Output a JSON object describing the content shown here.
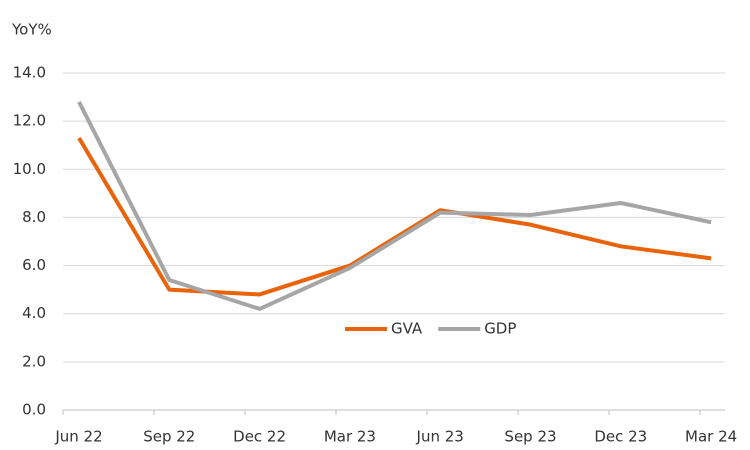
{
  "chart_data": {
    "type": "line",
    "y_label": "YoY%",
    "categories": [
      "Jun 22",
      "Sep 22",
      "Dec 22",
      "Mar 23",
      "Jun 23",
      "Sep 23",
      "Dec 23",
      "Mar 24"
    ],
    "series": [
      {
        "name": "GVA",
        "color": "#e8630a",
        "values": [
          11.3,
          5.0,
          4.8,
          6.0,
          8.3,
          7.7,
          6.8,
          6.3
        ]
      },
      {
        "name": "GDP",
        "color": "#a6a6a6",
        "values": [
          12.8,
          5.4,
          4.2,
          5.9,
          8.2,
          8.1,
          8.6,
          7.8
        ]
      }
    ],
    "ylim": [
      0,
      14
    ],
    "yticks": [
      {
        "value": 0,
        "label": "0.0"
      },
      {
        "value": 2,
        "label": "2.0"
      },
      {
        "value": 4,
        "label": "4.0"
      },
      {
        "value": 6,
        "label": "6.0"
      },
      {
        "value": 8,
        "label": "8.0"
      },
      {
        "value": 10,
        "label": "10.0"
      },
      {
        "value": 12,
        "label": "12.0"
      },
      {
        "value": 14,
        "label": "14.0"
      }
    ],
    "grid": true,
    "legend": "center"
  }
}
